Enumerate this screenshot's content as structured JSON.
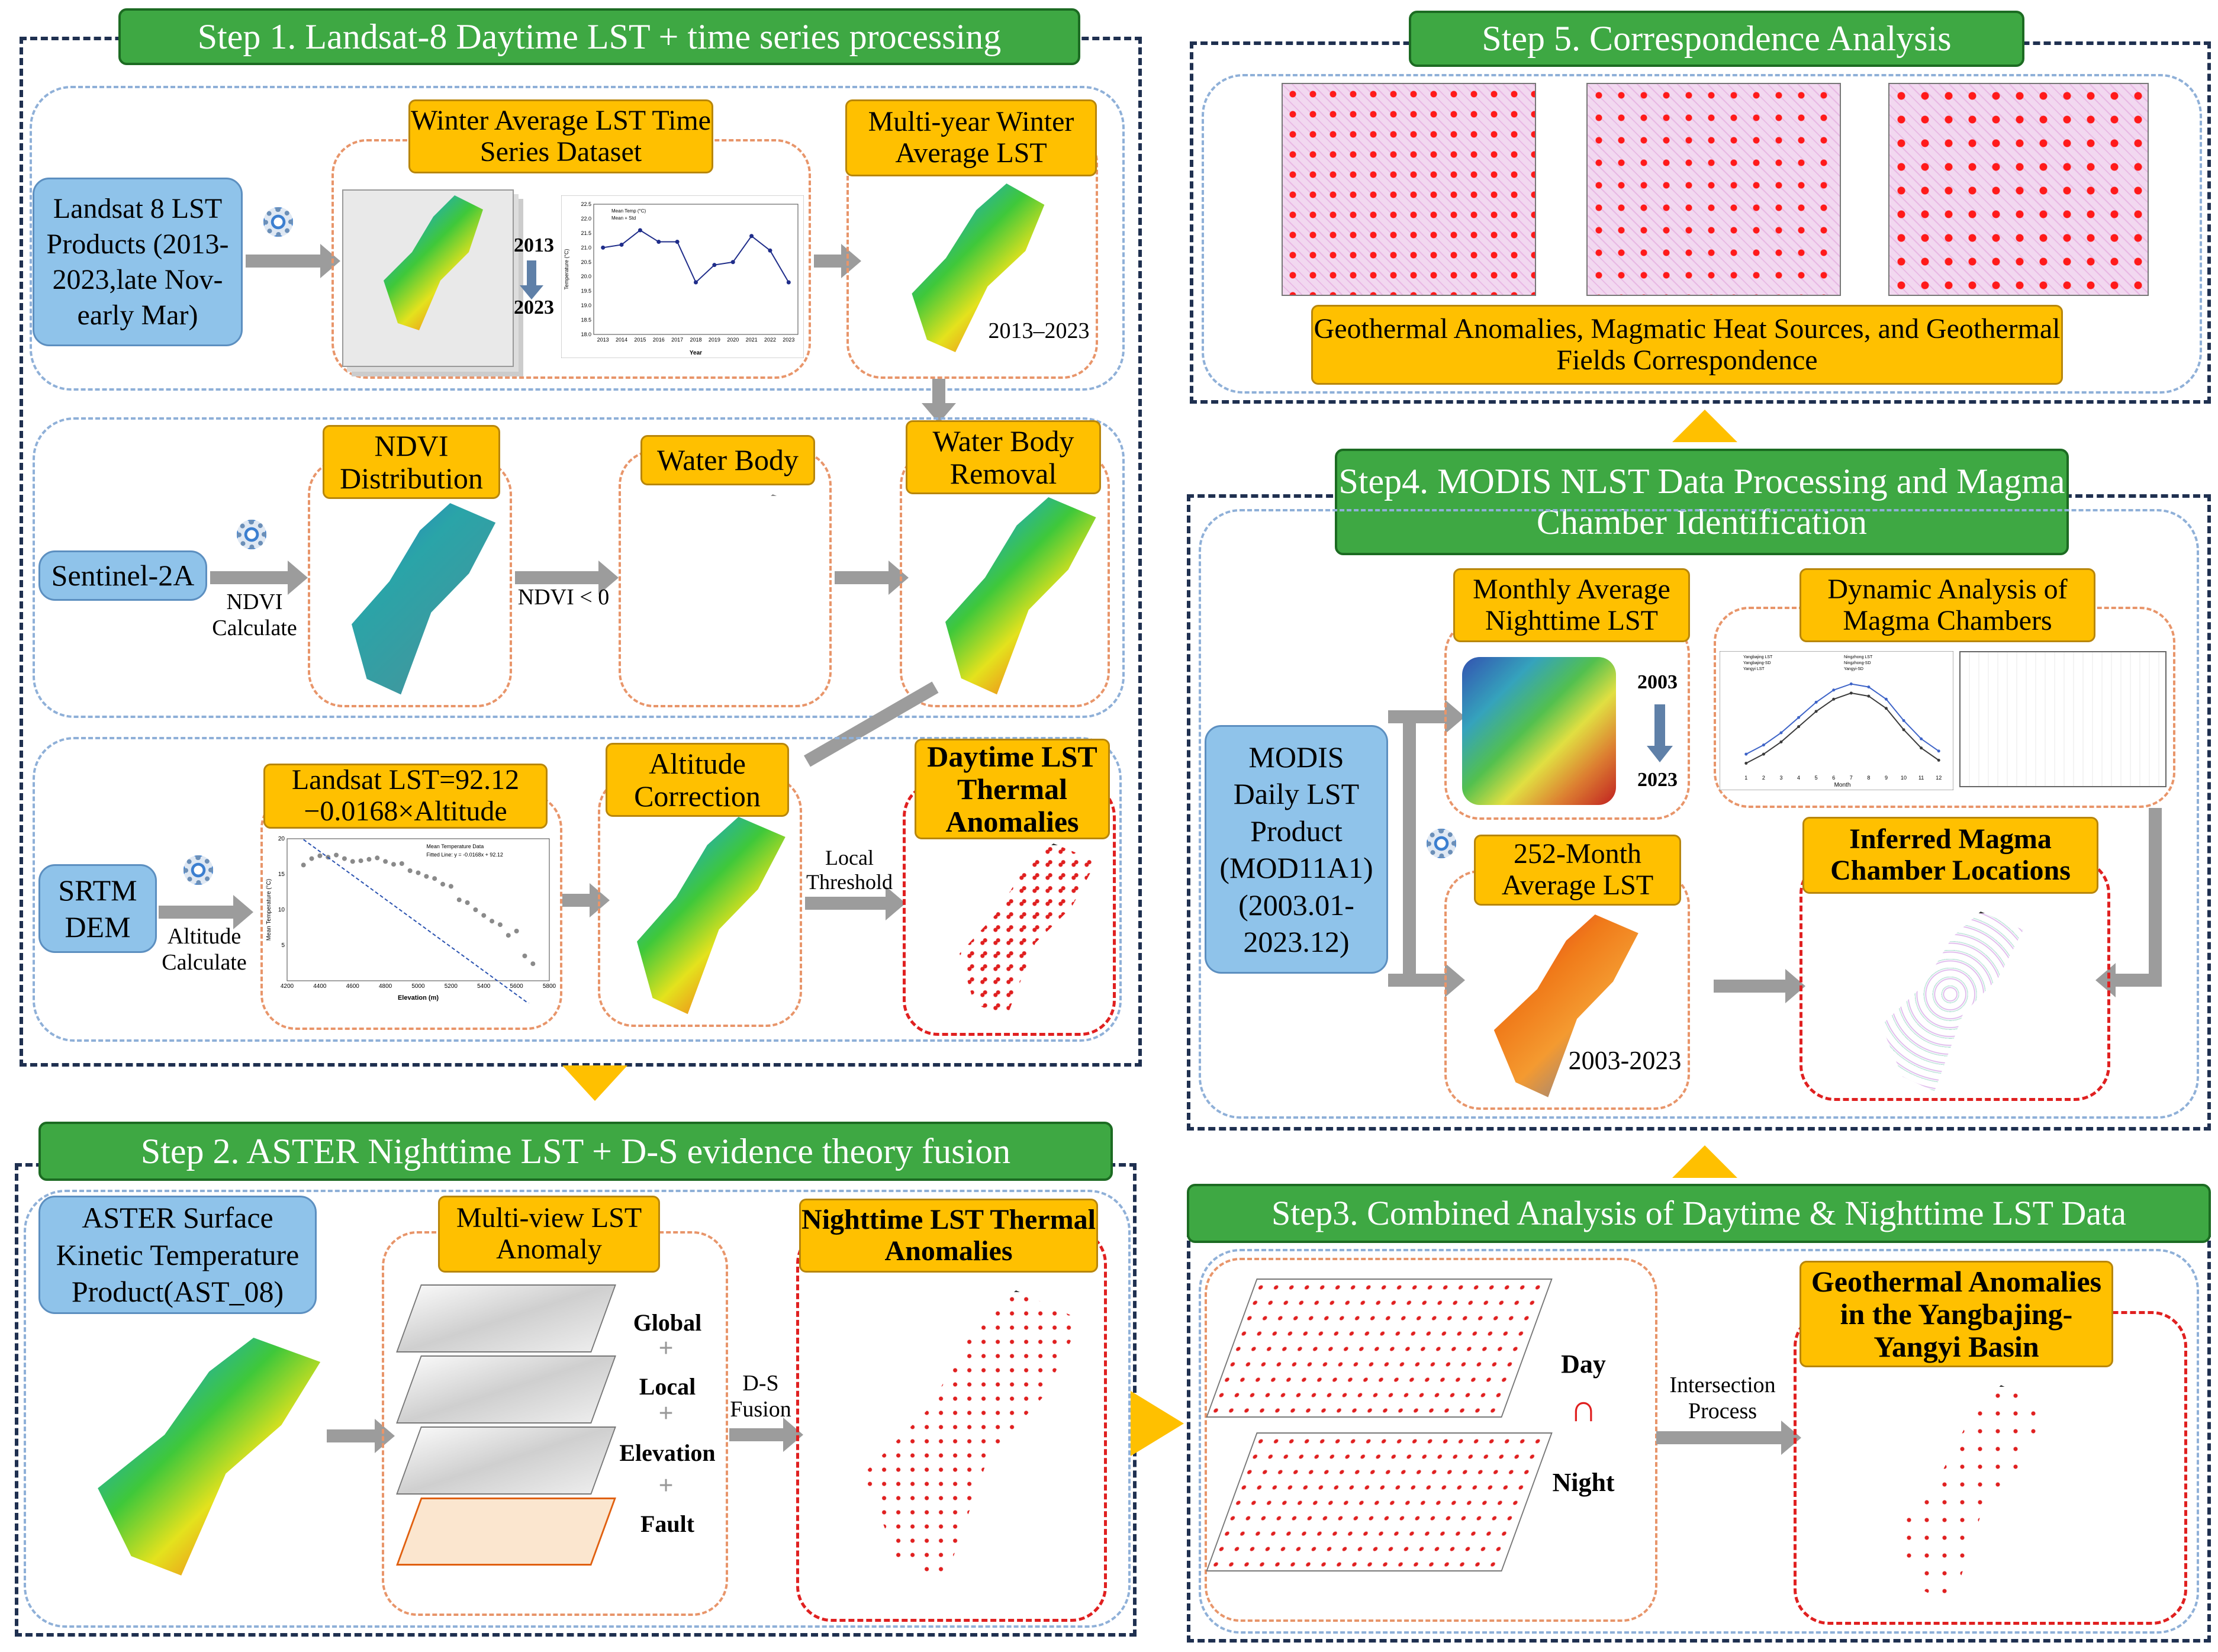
{
  "step1": {
    "title": "Step 1. Landsat-8 Daytime LST + time series processing",
    "landsat_products": "Landsat 8 LST Products (2013-2023,late Nov-early Mar)",
    "winter_avg_ts": "Winter Average LST Time Series Dataset",
    "year_start": "2013",
    "year_end": "2023",
    "multiyear_winter": "Multi-year Winter Average LST",
    "multiyear_range": "2013–2023",
    "ts_chart": {
      "type": "line",
      "legend": [
        "Mean Temp (°C)",
        "Mean + Std"
      ],
      "ylabel": "Temperature (°C)",
      "xlabel": "Year",
      "x": [
        "2013",
        "2014",
        "2015",
        "2016",
        "2017",
        "2018",
        "2019",
        "2020",
        "2021",
        "2022",
        "2023"
      ],
      "values": [
        21.0,
        21.1,
        21.6,
        21.2,
        21.2,
        19.8,
        20.4,
        20.5,
        21.4,
        20.9,
        19.8
      ],
      "yticks": [
        "18.0",
        "18.5",
        "19.0",
        "19.5",
        "20.0",
        "20.5",
        "21.0",
        "21.5",
        "22.0",
        "22.5"
      ],
      "ylim": [
        18.0,
        22.5
      ]
    },
    "ndvi_distribution": "NDVI Distribution",
    "sentinel": "Sentinel-2A",
    "ndvi_calc": "NDVI Calculate",
    "ndvi_lt0": "NDVI < 0",
    "water_body": "Water Body",
    "water_removal": "Water Body Removal",
    "landsat_formula": "Landsat LST=92.12 −0.0168×Altitude",
    "srtm": "SRTM DEM",
    "altitude_calc": "Altitude Calculate",
    "altitude_correction": "Altitude Correction",
    "local_threshold": "Local Threshold",
    "daytime_anomalies": "Daytime LST Thermal Anomalies",
    "elev_chart": {
      "type": "scatter",
      "legend": [
        "Mean Temperature Data",
        "Fitted Line: y = -0.0168x + 92.12"
      ],
      "xlabel": "Elevation (m)",
      "ylabel": "Mean Temperature (°C)",
      "x": [
        4300,
        4350,
        4400,
        4450,
        4500,
        4550,
        4600,
        4650,
        4700,
        4750,
        4800,
        4850,
        4900,
        4950,
        5000,
        5050,
        5100,
        5150,
        5200,
        5250,
        5300,
        5350,
        5400,
        5450,
        5500,
        5550,
        5600,
        5650,
        5700
      ],
      "values": [
        16.3,
        17.2,
        17.6,
        17.4,
        17.7,
        17.2,
        16.8,
        16.9,
        17.1,
        17.3,
        16.8,
        16.4,
        16.5,
        15.5,
        15.2,
        14.7,
        14.4,
        13.6,
        13.3,
        11.4,
        11.0,
        10.0,
        9.2,
        8.4,
        7.9,
        6.4,
        7.0,
        3.5,
        2.4
      ],
      "xticks": [
        "4200",
        "4400",
        "4600",
        "4800",
        "5000",
        "5200",
        "5400",
        "5600",
        "5800"
      ],
      "yticks": [
        "5",
        "10",
        "15",
        "20"
      ],
      "xlim": [
        4200,
        5800
      ],
      "ylim": [
        0,
        20
      ]
    }
  },
  "step2": {
    "title": "Step 2. ASTER Nighttime LST + D-S evidence theory fusion",
    "aster_product": "ASTER Surface Kinetic Temperature Product(AST_08)",
    "multiview": "Multi-view LST Anomaly",
    "layers": [
      "Global",
      "Local",
      "Elevation",
      "Fault"
    ],
    "plus": "+",
    "ds_fusion": "D-S Fusion",
    "nighttime_anomalies": "Nighttime LST Thermal Anomalies"
  },
  "step3": {
    "title": "Step3. Combined Analysis of Daytime & Nighttime LST Data",
    "day": "Day",
    "night": "Night",
    "intersect_symbol": "∩",
    "intersection": "Intersection Process",
    "geothermal_anomalies": "Geothermal Anomalies in the Yangbajing-Yangyi Basin"
  },
  "step4": {
    "title": "Step4. MODIS NLST Data Processing and Magma Chamber Identification",
    "modis_product": "MODIS Daily LST Product (MOD11A1) (2003.01-2023.12)",
    "monthly_avg": "Monthly Average Nighttime LST",
    "year_start": "2003",
    "year_end": "2023",
    "dynamic": "Dynamic Analysis of Magma Chambers",
    "month_avg_252": "252-Month Average LST",
    "range": "2003-2023",
    "inferred": "Inferred Magma Chamber Locations",
    "monthly_chart": {
      "type": "line",
      "legend": [
        "Yangbajing LST",
        "Ningzhong LST",
        "Yangbajing-SD",
        "Ningzhong-SD",
        "Yangyi LST",
        "Yangyi-SD"
      ],
      "xlabel": "Month",
      "x": [
        "1",
        "2",
        "3",
        "4",
        "5",
        "6",
        "7",
        "8",
        "9",
        "10",
        "11",
        "12"
      ],
      "series": [
        {
          "values": [
            -14,
            -11,
            -7,
            -2,
            3,
            7,
            9,
            8,
            4,
            -3,
            -9,
            -13
          ]
        },
        {
          "values": [
            -17,
            -14,
            -10,
            -5,
            0,
            4,
            6,
            5,
            1,
            -6,
            -12,
            -16
          ]
        }
      ]
    }
  },
  "step5": {
    "title": "Step 5. Correspondence Analysis",
    "correspondence": "Geothermal Anomalies, Magmatic Heat Sources, and Geothermal Fields Correspondence"
  }
}
